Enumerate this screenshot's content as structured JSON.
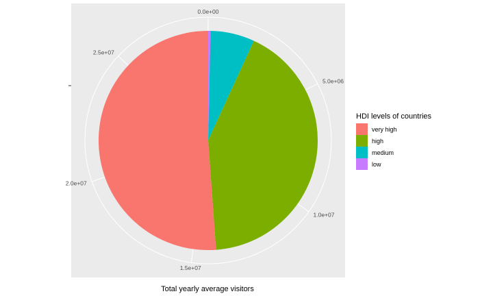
{
  "chart_data": {
    "type": "pie",
    "xlabel": "Total yearly average visitors",
    "legend_title": "HDI levels of countries",
    "legend_position": "right",
    "categories": [
      "very high",
      "high",
      "medium",
      "low"
    ],
    "values": [
      14700000,
      12070000,
      1870000,
      100000
    ],
    "colors": {
      "very high": "#F8766D",
      "high": "#7CAE00",
      "medium": "#00BFC4",
      "low": "#C77CFF"
    },
    "theta_axis": {
      "max": 28740000,
      "ticks": [
        0,
        5000000,
        10000000,
        15000000,
        20000000,
        25000000
      ],
      "tick_labels": [
        "0.0e+00",
        "5.0e+06",
        "1.0e+07",
        "1.5e+07",
        "2.0e+07",
        "2.5e+07"
      ]
    },
    "grid": true,
    "panel_background": "#EBEBEB",
    "grid_color": "#FFFFFF"
  }
}
